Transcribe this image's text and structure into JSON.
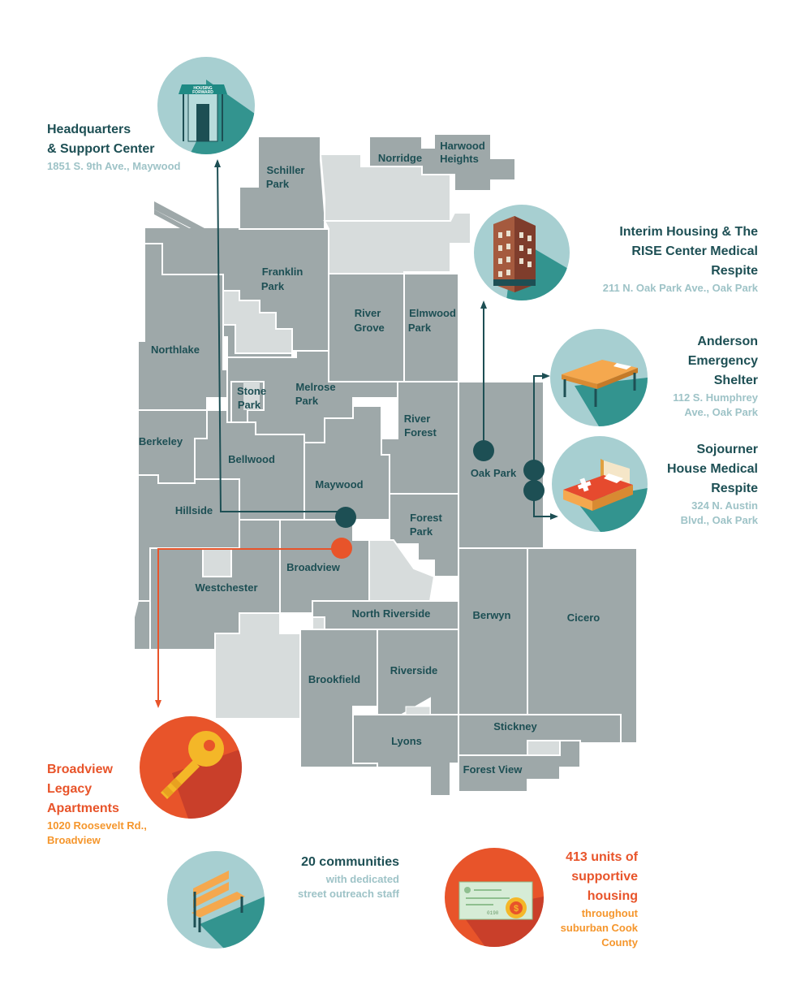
{
  "colors": {
    "teal_dark": "#1d4f54",
    "muni_fill": "#9ea8a9",
    "muni_light": "#d7dcdc",
    "orange": "#e8542a",
    "gold": "#f5962c",
    "pale_teal": "#9ec3c7",
    "circle_teal": "#a7cfd1"
  },
  "municipalities": [
    {
      "lines": [
        "Schiller",
        "Park"
      ]
    },
    {
      "lines": [
        "Norridge"
      ]
    },
    {
      "lines": [
        "Harwood",
        "Heights"
      ]
    },
    {
      "lines": [
        "Franklin",
        "Park"
      ]
    },
    {
      "lines": [
        "River",
        "Grove"
      ]
    },
    {
      "lines": [
        "Elmwood",
        "Park"
      ]
    },
    {
      "lines": [
        "Northlake"
      ]
    },
    {
      "lines": [
        "Melrose",
        "Park"
      ]
    },
    {
      "lines": [
        "Stone",
        "Park"
      ]
    },
    {
      "lines": [
        "River",
        "Forest"
      ]
    },
    {
      "lines": [
        "Berkeley"
      ]
    },
    {
      "lines": [
        "Bellwood"
      ]
    },
    {
      "lines": [
        "Maywood"
      ]
    },
    {
      "lines": [
        "Oak Park"
      ]
    },
    {
      "lines": [
        "Hillside"
      ]
    },
    {
      "lines": [
        "Forest",
        "Park"
      ]
    },
    {
      "lines": [
        "Broadview"
      ]
    },
    {
      "lines": [
        "Westchester"
      ]
    },
    {
      "lines": [
        "North Riverside"
      ]
    },
    {
      "lines": [
        "Berwyn"
      ]
    },
    {
      "lines": [
        "Cicero"
      ]
    },
    {
      "lines": [
        "Brookfield"
      ]
    },
    {
      "lines": [
        "Riverside"
      ]
    },
    {
      "lines": [
        "Stickney"
      ]
    },
    {
      "lines": [
        "Lyons"
      ]
    },
    {
      "lines": [
        "Forest View"
      ]
    }
  ],
  "locations": {
    "headquarters": {
      "title": [
        "Headquarters",
        "& Support Center"
      ],
      "address": "1851 S. 9th Ave., Maywood",
      "icon": "building-awning-icon",
      "awning_text": [
        "HOUSING",
        "FORWARD"
      ]
    },
    "interim": {
      "title": [
        "Interim Housing & The",
        "RISE Center Medical",
        "Respite"
      ],
      "address": "211 N. Oak Park Ave., Oak Park",
      "icon": "apartment-building-icon"
    },
    "anderson": {
      "title": [
        "Anderson",
        "Emergency",
        "Shelter"
      ],
      "address": [
        "112 S. Humphrey",
        "Ave.,  Oak Park"
      ],
      "icon": "cot-icon"
    },
    "sojourner": {
      "title": [
        "Sojourner",
        "House Medical",
        "Respite"
      ],
      "address": [
        "324 N. Austin",
        "Blvd., Oak Park"
      ],
      "icon": "medical-bed-icon"
    },
    "broadview": {
      "title": [
        "Broadview",
        "Legacy",
        "Apartments"
      ],
      "address": [
        "1020 Roosevelt Rd.,",
        "Broadview"
      ],
      "icon": "key-icon"
    }
  },
  "stats": {
    "communities": {
      "title": "20 communities",
      "subtitle": [
        "with dedicated",
        "street outreach staff"
      ],
      "icon": "bench-icon"
    },
    "units": {
      "title": [
        "413 units of",
        "supportive",
        "housing"
      ],
      "subtitle": [
        "throughout",
        "suburban Cook",
        "County"
      ],
      "icon": "check-money-icon",
      "check_number": "0190"
    }
  }
}
